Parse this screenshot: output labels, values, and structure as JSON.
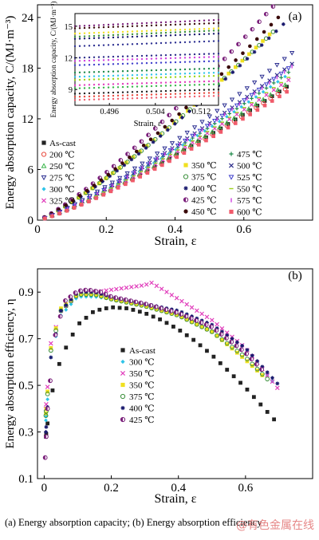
{
  "caption": "(a)  Energy absorption capacity; (b) Energy absorption efficiency",
  "watermark": "@有色金属在线",
  "chart_data": [
    {
      "type": "scatter",
      "panel_label": "(a)",
      "xlabel": "Strain, ε",
      "ylabel": "Energy absorption capacity, C/(MJ·m⁻³)",
      "xlim": [
        0,
        0.8
      ],
      "ylim": [
        0,
        25.5
      ],
      "xticks": [
        0,
        0.2,
        0.4,
        0.6
      ],
      "xtick_labels": [
        "0",
        "0.2",
        "0.4",
        "0.6"
      ],
      "yticks": [
        0,
        6,
        12,
        18,
        24
      ],
      "ytick_labels": [
        "0",
        "6",
        "12",
        "18",
        "24"
      ],
      "legend_left": [
        "As-cast",
        "200 ℃",
        "250 ℃",
        "275 ℃",
        "300 ℃",
        "325 ℃"
      ],
      "legend_mid": [
        "350 ℃",
        "375 ℃",
        "400 ℃",
        "425 ℃",
        "450 ℃"
      ],
      "legend_right": [
        "475 ℃",
        "500 ℃",
        "525 ℃",
        "550 ℃",
        "575 ℃",
        "600 ℃"
      ],
      "series": [
        {
          "name": "As-cast",
          "color": "#222222",
          "marker": "square",
          "end_x": 0.725,
          "end_y": 15.8
        },
        {
          "name": "200 ℃",
          "color": "#e8483c",
          "marker": "circle-open",
          "end_x": 0.72,
          "end_y": 15.5
        },
        {
          "name": "250 ℃",
          "color": "#39b54a",
          "marker": "triangle-open",
          "end_x": 0.72,
          "end_y": 16.0
        },
        {
          "name": "275 ℃",
          "color": "#2e3192",
          "marker": "triangle-down-open",
          "end_x": 0.74,
          "end_y": 19.8
        },
        {
          "name": "300 ℃",
          "color": "#2ec4e8",
          "marker": "diamond",
          "end_x": 0.72,
          "end_y": 17.0
        },
        {
          "name": "325 ℃",
          "color": "#e13fbc",
          "marker": "x",
          "end_x": 0.73,
          "end_y": 16.6
        },
        {
          "name": "350 ℃",
          "color": "#f0e020",
          "marker": "square",
          "end_x": 0.675,
          "end_y": 22.0
        },
        {
          "name": "375 ℃",
          "color": "#3a8f3a",
          "marker": "circle-open",
          "end_x": 0.685,
          "end_y": 22.3
        },
        {
          "name": "400 ℃",
          "color": "#1a1a6e",
          "marker": "star",
          "end_x": 0.715,
          "end_y": 23.2
        },
        {
          "name": "425 ℃",
          "color": "#7a1f7a",
          "marker": "circle-half",
          "end_x": 0.685,
          "end_y": 25.3
        },
        {
          "name": "450 ℃",
          "color": "#3a0a0a",
          "marker": "circle",
          "end_x": 0.7,
          "end_y": 24.0
        },
        {
          "name": "475 ℃",
          "color": "#1f8a4a",
          "marker": "plus",
          "end_x": 0.73,
          "end_y": 17.5
        },
        {
          "name": "500 ℃",
          "color": "#2d2d8a",
          "marker": "x",
          "end_x": 0.74,
          "end_y": 18.5
        },
        {
          "name": "525 ℃",
          "color": "#4040cc",
          "marker": "triangle-down-open",
          "end_x": 0.73,
          "end_y": 18.0
        },
        {
          "name": "550 ℃",
          "color": "#9cd41a",
          "marker": "dash",
          "end_x": 0.73,
          "end_y": 16.9
        },
        {
          "name": "575 ℃",
          "color": "#d040e0",
          "marker": "vbar",
          "end_x": 0.74,
          "end_y": 18.2
        },
        {
          "name": "600 ℃",
          "color": "#f05a6a",
          "marker": "square",
          "end_x": 0.725,
          "end_y": 15.2
        }
      ],
      "inset": {
        "xlabel": "Strain, ε",
        "ylabel": "Energy absorption capacity, C/(MJ·m⁻³)",
        "xlim": [
          0.49,
          0.515
        ],
        "ylim": [
          7.5,
          16.2
        ],
        "xticks": [
          0.496,
          0.504,
          0.512
        ],
        "xtick_labels": [
          "0.496",
          "0.504",
          "0.512"
        ],
        "yticks": [
          9,
          12,
          15
        ],
        "ytick_labels": [
          "9",
          "12",
          "15"
        ],
        "lines": [
          {
            "y0": 15.0,
            "y1": 15.6,
            "color": "#7a1f7a"
          },
          {
            "y0": 14.8,
            "y1": 15.3,
            "color": "#3a0a0a"
          },
          {
            "y0": 14.3,
            "y1": 14.8,
            "color": "#f0e020"
          },
          {
            "y0": 14.0,
            "y1": 14.6,
            "color": "#3a8f3a"
          },
          {
            "y0": 13.8,
            "y1": 14.3,
            "color": "#1a1a6e"
          },
          {
            "y0": 13.1,
            "y1": 13.6,
            "color": "#2e3192"
          },
          {
            "y0": 12.0,
            "y1": 12.4,
            "color": "#2d2d8a"
          },
          {
            "y0": 11.7,
            "y1": 12.1,
            "color": "#d040e0"
          },
          {
            "y0": 11.3,
            "y1": 11.7,
            "color": "#4040cc"
          },
          {
            "y0": 10.6,
            "y1": 11.0,
            "color": "#1f8a4a"
          },
          {
            "y0": 10.2,
            "y1": 10.6,
            "color": "#2ec4e8"
          },
          {
            "y0": 9.9,
            "y1": 10.3,
            "color": "#9cd41a"
          },
          {
            "y0": 9.4,
            "y1": 9.8,
            "color": "#e13fbc"
          },
          {
            "y0": 9.1,
            "y1": 9.5,
            "color": "#39b54a"
          },
          {
            "y0": 8.6,
            "y1": 9.0,
            "color": "#222222"
          },
          {
            "y0": 8.3,
            "y1": 8.7,
            "color": "#e8483c"
          },
          {
            "y0": 8.0,
            "y1": 8.4,
            "color": "#f05a6a"
          }
        ]
      }
    },
    {
      "type": "scatter",
      "panel_label": "(b)",
      "xlabel": "Strain, ε",
      "ylabel": "Energy absorption efficiency, η",
      "xlim": [
        -0.02,
        0.8
      ],
      "ylim": [
        0.1,
        1.0
      ],
      "xticks": [
        0,
        0.2,
        0.4,
        0.6
      ],
      "xtick_labels": [
        "0",
        "0.2",
        "0.4",
        "0.6"
      ],
      "yticks": [
        0.1,
        0.3,
        0.5,
        0.7,
        0.9
      ],
      "ytick_labels": [
        "0.1",
        "0.3",
        "0.5",
        "0.7",
        "0.9"
      ],
      "series": [
        {
          "name": "As-cast",
          "color": "#222222",
          "marker": "square",
          "points": [
            [
              0.005,
              0.28
            ],
            [
              0.02,
              0.45
            ],
            [
              0.05,
              0.62
            ],
            [
              0.1,
              0.76
            ],
            [
              0.15,
              0.82
            ],
            [
              0.2,
              0.835
            ],
            [
              0.25,
              0.83
            ],
            [
              0.3,
              0.81
            ],
            [
              0.35,
              0.78
            ],
            [
              0.4,
              0.74
            ],
            [
              0.45,
              0.69
            ],
            [
              0.5,
              0.63
            ],
            [
              0.55,
              0.56
            ],
            [
              0.6,
              0.49
            ],
            [
              0.65,
              0.41
            ],
            [
              0.7,
              0.33
            ]
          ]
        },
        {
          "name": "300 ℃",
          "color": "#2ec4e8",
          "marker": "diamond",
          "points": [
            [
              0.005,
              0.35
            ],
            [
              0.02,
              0.62
            ],
            [
              0.05,
              0.8
            ],
            [
              0.1,
              0.88
            ],
            [
              0.15,
              0.88
            ],
            [
              0.2,
              0.87
            ],
            [
              0.3,
              0.85
            ],
            [
              0.4,
              0.82
            ],
            [
              0.5,
              0.76
            ],
            [
              0.6,
              0.66
            ],
            [
              0.69,
              0.5
            ]
          ]
        },
        {
          "name": "350 ℃",
          "color": "#e13fbc",
          "marker": "x",
          "points": [
            [
              0.005,
              0.4
            ],
            [
              0.02,
              0.68
            ],
            [
              0.05,
              0.82
            ],
            [
              0.1,
              0.89
            ],
            [
              0.15,
              0.9
            ],
            [
              0.2,
              0.91
            ],
            [
              0.25,
              0.92
            ],
            [
              0.3,
              0.93
            ],
            [
              0.32,
              0.94
            ],
            [
              0.4,
              0.87
            ],
            [
              0.5,
              0.78
            ],
            [
              0.6,
              0.66
            ],
            [
              0.7,
              0.48
            ]
          ]
        },
        {
          "name": "350 ℃",
          "color": "#f0e020",
          "marker": "square",
          "points": [
            [
              0.005,
              0.38
            ],
            [
              0.02,
              0.66
            ],
            [
              0.05,
              0.83
            ],
            [
              0.1,
              0.89
            ],
            [
              0.15,
              0.89
            ],
            [
              0.2,
              0.87
            ],
            [
              0.3,
              0.84
            ],
            [
              0.4,
              0.8
            ],
            [
              0.5,
              0.73
            ],
            [
              0.6,
              0.61
            ],
            [
              0.66,
              0.53
            ]
          ]
        },
        {
          "name": "375 ℃",
          "color": "#3a8f3a",
          "marker": "circle-open",
          "points": [
            [
              0.005,
              0.37
            ],
            [
              0.02,
              0.65
            ],
            [
              0.05,
              0.82
            ],
            [
              0.1,
              0.89
            ],
            [
              0.15,
              0.89
            ],
            [
              0.2,
              0.87
            ],
            [
              0.3,
              0.84
            ],
            [
              0.4,
              0.8
            ],
            [
              0.5,
              0.73
            ],
            [
              0.6,
              0.62
            ],
            [
              0.67,
              0.52
            ]
          ]
        },
        {
          "name": "400 ℃",
          "color": "#1a1a6e",
          "marker": "star",
          "points": [
            [
              0.005,
              0.3
            ],
            [
              0.02,
              0.62
            ],
            [
              0.05,
              0.82
            ],
            [
              0.1,
              0.9
            ],
            [
              0.15,
              0.9
            ],
            [
              0.2,
              0.88
            ],
            [
              0.3,
              0.85
            ],
            [
              0.4,
              0.82
            ],
            [
              0.5,
              0.76
            ],
            [
              0.6,
              0.66
            ],
            [
              0.7,
              0.5
            ]
          ]
        },
        {
          "name": "425 ℃",
          "color": "#7a1f7a",
          "marker": "circle-half",
          "points": [
            [
              0.003,
              0.19
            ],
            [
              0.01,
              0.4
            ],
            [
              0.03,
              0.7
            ],
            [
              0.06,
              0.86
            ],
            [
              0.1,
              0.905
            ],
            [
              0.13,
              0.91
            ],
            [
              0.17,
              0.9
            ],
            [
              0.2,
              0.88
            ],
            [
              0.3,
              0.85
            ],
            [
              0.4,
              0.81
            ],
            [
              0.5,
              0.75
            ],
            [
              0.6,
              0.64
            ],
            [
              0.66,
              0.55
            ]
          ]
        }
      ]
    }
  ]
}
